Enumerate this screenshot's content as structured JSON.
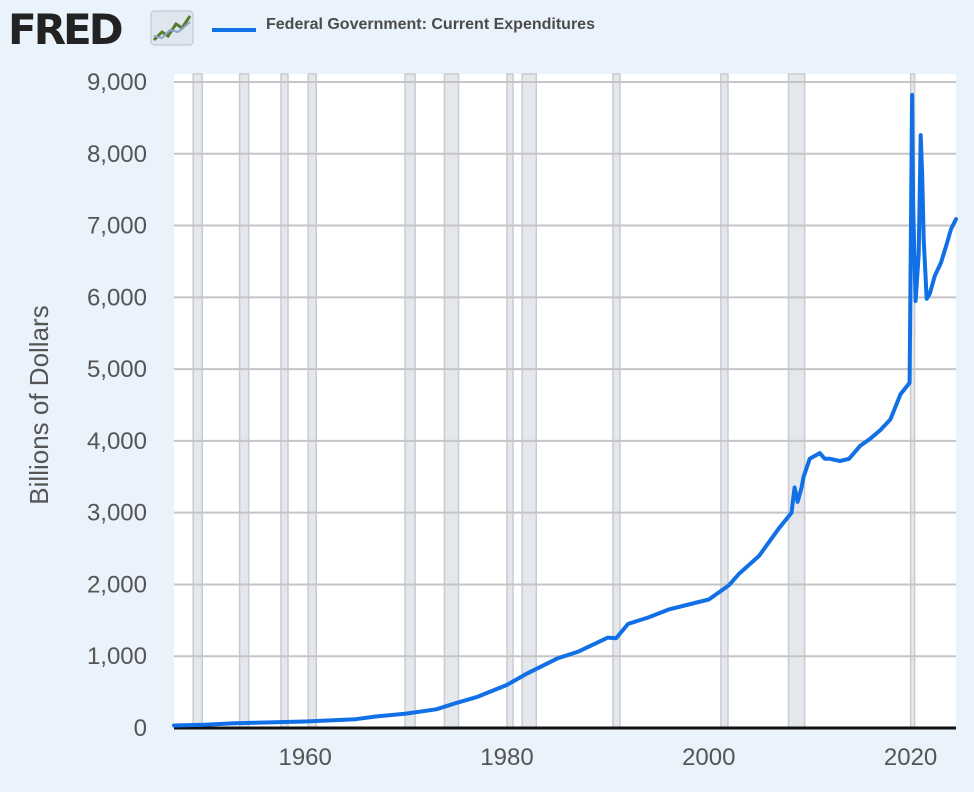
{
  "brand": {
    "logo_text": "FRED",
    "logo_icon": "line-graph-icon"
  },
  "colors": {
    "background": "#eaf2fb",
    "plot_background": "#ffffff",
    "series": "#1170e6",
    "recession": "#e4e7eb",
    "recession_edge": "#c8ccd2",
    "grid": "#c5c5c5"
  },
  "chart_data": {
    "type": "line",
    "title": "",
    "xlabel": "",
    "ylabel": "Billions of Dollars",
    "xlim": [
      1947,
      2024.5
    ],
    "ylim": [
      0,
      9000
    ],
    "x_ticks": [
      1960,
      1980,
      2000,
      2020
    ],
    "x_tick_labels": [
      "1960",
      "1980",
      "2000",
      "2020"
    ],
    "y_ticks": [
      0,
      1000,
      2000,
      3000,
      4000,
      5000,
      6000,
      7000,
      8000,
      9000
    ],
    "y_tick_labels": [
      "0",
      "1,000",
      "2,000",
      "3,000",
      "4,000",
      "5,000",
      "6,000",
      "7,000",
      "8,000",
      "9,000"
    ],
    "grid": true,
    "legend": "top-left",
    "recession_shading": [
      [
        1948.9,
        1949.8
      ],
      [
        1953.5,
        1954.4
      ],
      [
        1957.6,
        1958.3
      ],
      [
        1960.3,
        1961.1
      ],
      [
        1969.9,
        1970.9
      ],
      [
        1973.8,
        1975.2
      ],
      [
        1980.0,
        1980.6
      ],
      [
        1981.5,
        1982.9
      ],
      [
        1990.5,
        1991.2
      ],
      [
        2001.2,
        2001.9
      ],
      [
        2007.9,
        2009.5
      ],
      [
        2020.0,
        2020.4
      ]
    ],
    "series": [
      {
        "name": "Federal Government: Current Expenditures",
        "x": [
          1947,
          1950,
          1953,
          1955,
          1960,
          1965,
          1967,
          1970,
          1973,
          1975,
          1977,
          1980,
          1982,
          1985,
          1987,
          1990,
          1990.8,
          1992,
          1994,
          1996,
          1998,
          2000,
          2002,
          2003,
          2005,
          2007,
          2008.2,
          2008.5,
          2008.8,
          2009.2,
          2009.4,
          2010,
          2011,
          2011.5,
          2012,
          2013,
          2013.9,
          2015,
          2016,
          2017,
          2018,
          2019,
          2019.9,
          2020.15,
          2020.25,
          2020.5,
          2020.8,
          2021.0,
          2021.15,
          2021.3,
          2021.6,
          2021.9,
          2022.4,
          2023,
          2023.6,
          2024,
          2024.5
        ],
        "y": [
          35,
          45,
          65,
          72,
          90,
          122,
          160,
          200,
          260,
          350,
          430,
          600,
          760,
          970,
          1060,
          1260,
          1250,
          1450,
          1540,
          1650,
          1720,
          1790,
          1990,
          2150,
          2400,
          2790,
          3000,
          3350,
          3150,
          3350,
          3500,
          3750,
          3830,
          3750,
          3750,
          3720,
          3750,
          3930,
          4030,
          4150,
          4300,
          4650,
          4810,
          8820,
          7300,
          5950,
          6600,
          8260,
          7700,
          6800,
          5980,
          6050,
          6300,
          6480,
          6750,
          6950,
          7090
        ]
      }
    ]
  }
}
